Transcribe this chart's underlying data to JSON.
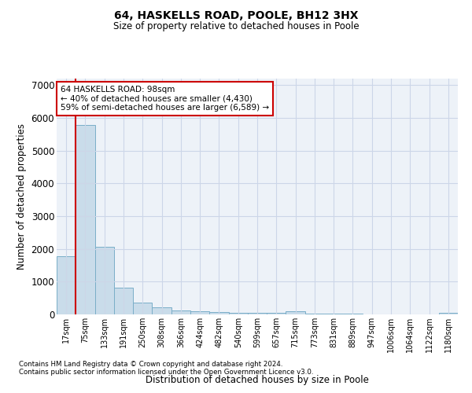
{
  "title": "64, HASKELLS ROAD, POOLE, BH12 3HX",
  "subtitle": "Size of property relative to detached houses in Poole",
  "xlabel": "Distribution of detached houses by size in Poole",
  "ylabel": "Number of detached properties",
  "bar_color": "#c9dcea",
  "bar_edge_color": "#7aaec8",
  "grid_color": "#ccd6e8",
  "background_color": "#edf2f8",
  "annotation_box_color": "#cc0000",
  "vline_color": "#cc0000",
  "categories": [
    "17sqm",
    "75sqm",
    "133sqm",
    "191sqm",
    "250sqm",
    "308sqm",
    "366sqm",
    "424sqm",
    "482sqm",
    "540sqm",
    "599sqm",
    "657sqm",
    "715sqm",
    "773sqm",
    "831sqm",
    "889sqm",
    "947sqm",
    "1006sqm",
    "1064sqm",
    "1122sqm",
    "1180sqm"
  ],
  "values": [
    1780,
    5780,
    2060,
    820,
    360,
    215,
    130,
    105,
    75,
    60,
    45,
    40,
    95,
    30,
    20,
    15,
    10,
    10,
    8,
    6,
    50
  ],
  "property_label": "64 HASKELLS ROAD: 98sqm",
  "annotation_line1": "← 40% of detached houses are smaller (4,430)",
  "annotation_line2": "59% of semi-detached houses are larger (6,589) →",
  "vline_position": 0.5,
  "ylim": [
    0,
    7200
  ],
  "yticks": [
    0,
    1000,
    2000,
    3000,
    4000,
    5000,
    6000,
    7000
  ],
  "footnote1": "Contains HM Land Registry data © Crown copyright and database right 2024.",
  "footnote2": "Contains public sector information licensed under the Open Government Licence v3.0."
}
